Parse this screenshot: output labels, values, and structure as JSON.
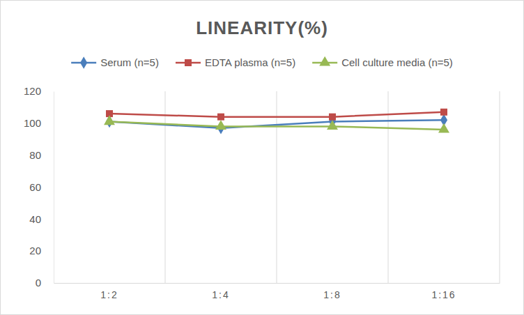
{
  "chart_data": {
    "type": "line",
    "title": "LINEARITY(%)",
    "categories": [
      "1:2",
      "1:4",
      "1:8",
      "1:16"
    ],
    "series": [
      {
        "name": "Serum (n=5)",
        "color": "#4a7ebb",
        "marker": "diamond",
        "values": [
          101,
          97,
          101,
          102
        ]
      },
      {
        "name": "EDTA plasma (n=5)",
        "color": "#be4b48",
        "marker": "square",
        "values": [
          106,
          104,
          104,
          107
        ]
      },
      {
        "name": "Cell culture media (n=5)",
        "color": "#98b954",
        "marker": "triangle",
        "values": [
          101,
          98,
          98,
          96
        ]
      }
    ],
    "ylim": [
      0,
      120
    ],
    "yticks": [
      0,
      20,
      40,
      60,
      80,
      100,
      120
    ],
    "grid": true,
    "legend": "top"
  }
}
